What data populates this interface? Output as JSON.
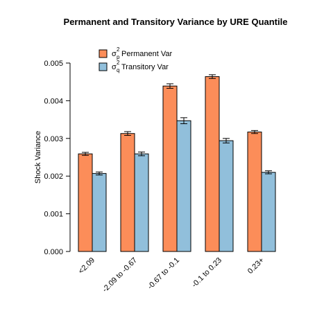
{
  "chart_data": {
    "type": "bar",
    "title": "Permanent and Transitory Variance by  URE Quantile",
    "xlabel": "",
    "ylabel": "Shock Variance",
    "ylim": [
      0,
      0.005
    ],
    "yticks": [
      "0.000",
      "0.001",
      "0.002",
      "0.003",
      "0.004",
      "0.005"
    ],
    "categories": [
      "<2.09",
      "-2.09 to -0.67",
      "-0.67 to -0.1",
      "-0.1 to 0.23",
      "0.23+"
    ],
    "series": [
      {
        "name": "Permanent Var",
        "symbol": "σ",
        "sup": "2",
        "sub": "p",
        "color": "#FC8D59",
        "values": [
          0.00259,
          0.00313,
          0.00439,
          0.00464,
          0.00317
        ],
        "error": [
          4e-05,
          5e-05,
          6e-05,
          5e-05,
          4e-05
        ]
      },
      {
        "name": "Transitory Var",
        "symbol": "σ",
        "sup": "2",
        "sub": "q",
        "color": "#91BFDB",
        "values": [
          0.00207,
          0.00259,
          0.00347,
          0.00294,
          0.0021
        ],
        "error": [
          4e-05,
          5e-05,
          8e-05,
          6e-05,
          4e-05
        ]
      }
    ],
    "legend_position": "top-left",
    "grid": false
  }
}
